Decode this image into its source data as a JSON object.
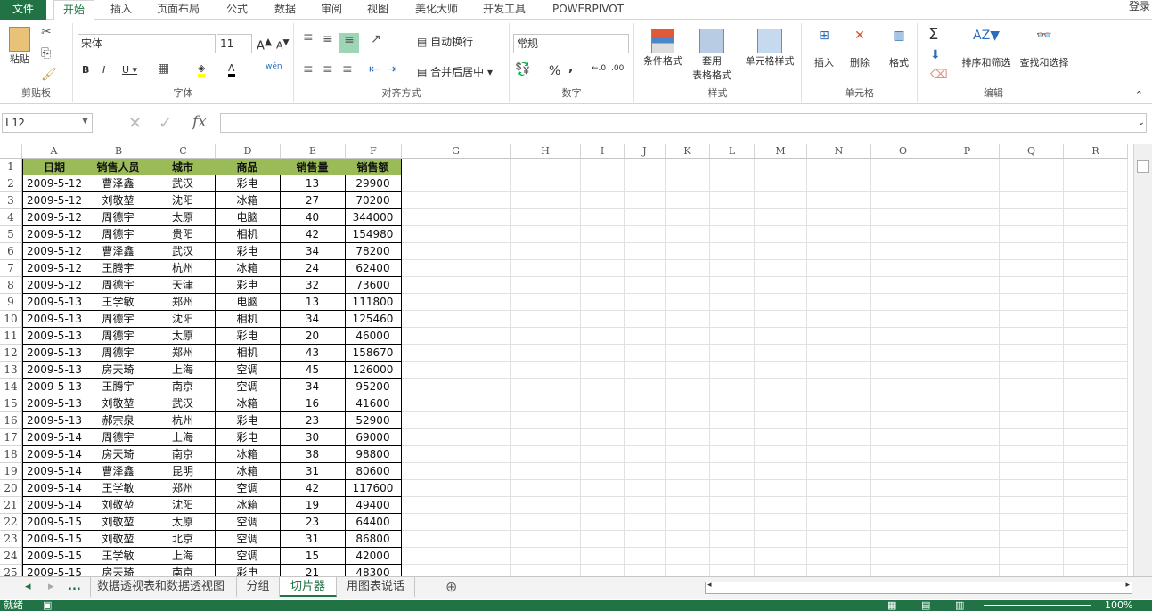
{
  "ribbon_tabs": [
    "文件",
    "开始",
    "插入",
    "页面布局",
    "公式",
    "数据",
    "审阅",
    "视图",
    "美化大师",
    "开发工具",
    "POWERPIVOT"
  ],
  "active_tab": 1,
  "login": "登录",
  "clipboard": {
    "paste": "粘贴",
    "label": "剪贴板"
  },
  "font": {
    "name": "宋体",
    "size": "11",
    "label": "字体"
  },
  "align": {
    "wrap": "自动换行",
    "merge": "合并后居中",
    "label": "对齐方式"
  },
  "number": {
    "format": "常规",
    "label": "数字",
    "percent": "%",
    "comma": ","
  },
  "styles": {
    "conditional": "条件格式",
    "table1": "套用",
    "table2": "表格格式",
    "cell": "单元格样式",
    "label": "样式"
  },
  "cells": {
    "insert": "插入",
    "delete": "删除",
    "format": "格式",
    "label": "单元格"
  },
  "editing": {
    "sort": "排序和筛选",
    "find": "查找和选择",
    "label": "编辑"
  },
  "formula_bar": {
    "name_box": "L12",
    "value": ""
  },
  "columns": [
    "A",
    "B",
    "C",
    "D",
    "E",
    "F",
    "G",
    "H",
    "I",
    "J",
    "K",
    "L",
    "M",
    "N",
    "O",
    "P",
    "Q",
    "R"
  ],
  "table": {
    "headers": [
      "日期",
      "销售人员",
      "城市",
      "商品",
      "销售量",
      "销售额"
    ],
    "header_color": "#9bbb59",
    "rows": [
      [
        "2009-5-12",
        "曹泽鑫",
        "武汉",
        "彩电",
        "13",
        "29900"
      ],
      [
        "2009-5-12",
        "刘敬堃",
        "沈阳",
        "冰箱",
        "27",
        "70200"
      ],
      [
        "2009-5-12",
        "周德宇",
        "太原",
        "电脑",
        "40",
        "344000"
      ],
      [
        "2009-5-12",
        "周德宇",
        "贵阳",
        "相机",
        "42",
        "154980"
      ],
      [
        "2009-5-12",
        "曹泽鑫",
        "武汉",
        "彩电",
        "34",
        "78200"
      ],
      [
        "2009-5-12",
        "王腾宇",
        "杭州",
        "冰箱",
        "24",
        "62400"
      ],
      [
        "2009-5-12",
        "周德宇",
        "天津",
        "彩电",
        "32",
        "73600"
      ],
      [
        "2009-5-13",
        "王学敏",
        "郑州",
        "电脑",
        "13",
        "111800"
      ],
      [
        "2009-5-13",
        "周德宇",
        "沈阳",
        "相机",
        "34",
        "125460"
      ],
      [
        "2009-5-13",
        "周德宇",
        "太原",
        "彩电",
        "20",
        "46000"
      ],
      [
        "2009-5-13",
        "周德宇",
        "郑州",
        "相机",
        "43",
        "158670"
      ],
      [
        "2009-5-13",
        "房天琦",
        "上海",
        "空调",
        "45",
        "126000"
      ],
      [
        "2009-5-13",
        "王腾宇",
        "南京",
        "空调",
        "34",
        "95200"
      ],
      [
        "2009-5-13",
        "刘敬堃",
        "武汉",
        "冰箱",
        "16",
        "41600"
      ],
      [
        "2009-5-13",
        "郝宗泉",
        "杭州",
        "彩电",
        "23",
        "52900"
      ],
      [
        "2009-5-14",
        "周德宇",
        "上海",
        "彩电",
        "30",
        "69000"
      ],
      [
        "2009-5-14",
        "房天琦",
        "南京",
        "冰箱",
        "38",
        "98800"
      ],
      [
        "2009-5-14",
        "曹泽鑫",
        "昆明",
        "冰箱",
        "31",
        "80600"
      ],
      [
        "2009-5-14",
        "王学敏",
        "郑州",
        "空调",
        "42",
        "117600"
      ],
      [
        "2009-5-14",
        "刘敬堃",
        "沈阳",
        "冰箱",
        "19",
        "49400"
      ],
      [
        "2009-5-15",
        "刘敬堃",
        "太原",
        "空调",
        "23",
        "64400"
      ],
      [
        "2009-5-15",
        "刘敬堃",
        "北京",
        "空调",
        "31",
        "86800"
      ],
      [
        "2009-5-15",
        "王学敏",
        "上海",
        "空调",
        "15",
        "42000"
      ],
      [
        "2009-5-15",
        "房天琦",
        "南京",
        "彩电",
        "21",
        "48300"
      ]
    ]
  },
  "sheets": {
    "more": "...",
    "tabs": [
      "数据透视表和数据透视图",
      "分组",
      "切片器",
      "用图表说话"
    ],
    "active": 2
  },
  "status": {
    "ready": "就绪",
    "zoom": "100%"
  },
  "accent": "#217346"
}
